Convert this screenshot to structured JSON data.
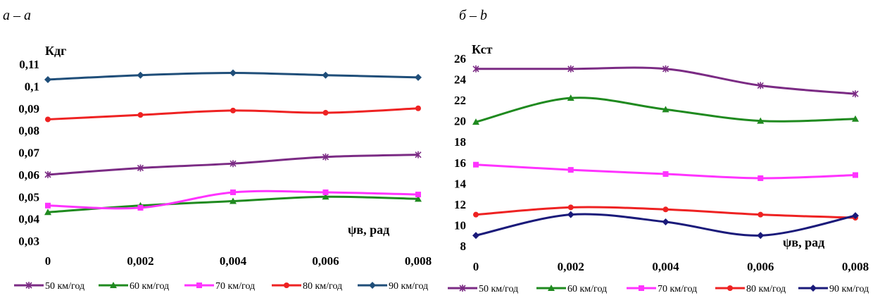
{
  "chart_data": [
    {
      "type": "line",
      "panel_label": "а – а",
      "ylabel": "Кдг",
      "xlabel": "ψв, рад",
      "x": [
        0,
        0.002,
        0.004,
        0.006,
        0.008
      ],
      "x_tick_labels": [
        "0",
        "0,002",
        "0,004",
        "0,006",
        "0,008"
      ],
      "ylim": [
        0.03,
        0.11
      ],
      "y_ticks": [
        0.03,
        0.04,
        0.05,
        0.06,
        0.07,
        0.08,
        0.09,
        0.1,
        0.11
      ],
      "y_tick_labels": [
        "0,03",
        "0,04",
        "0,05",
        "0,06",
        "0,07",
        "0,08",
        "0,09",
        "0,1",
        "0,11"
      ],
      "grid": false,
      "legend_position": "bottom",
      "series": [
        {
          "name": "50 км/год",
          "color": "#7b2b84",
          "marker": "star",
          "values": [
            0.06,
            0.063,
            0.065,
            0.068,
            0.069
          ]
        },
        {
          "name": "60 км/год",
          "color": "#1f8a1f",
          "marker": "triangle",
          "values": [
            0.043,
            0.046,
            0.048,
            0.05,
            0.049
          ]
        },
        {
          "name": "70 км/год",
          "color": "#ff33ff",
          "marker": "square",
          "values": [
            0.046,
            0.045,
            0.052,
            0.052,
            0.051
          ]
        },
        {
          "name": "80 км/год",
          "color": "#ee2222",
          "marker": "circle",
          "values": [
            0.085,
            0.087,
            0.089,
            0.088,
            0.09
          ]
        },
        {
          "name": "90 км/год",
          "color": "#1f4e79",
          "marker": "diamond",
          "values": [
            0.103,
            0.105,
            0.106,
            0.105,
            0.104
          ]
        }
      ]
    },
    {
      "type": "line",
      "panel_label": "б – b",
      "ylabel": "Кст",
      "xlabel": "ψв, рад",
      "x": [
        0,
        0.002,
        0.004,
        0.006,
        0.008
      ],
      "x_tick_labels": [
        "0",
        "0,002",
        "0,004",
        "0,006",
        "0,008"
      ],
      "ylim": [
        8,
        26
      ],
      "y_ticks": [
        8,
        10,
        12,
        14,
        16,
        18,
        20,
        22,
        24,
        26
      ],
      "y_tick_labels": [
        "8",
        "10",
        "12",
        "14",
        "16",
        "18",
        "20",
        "22",
        "24",
        "26"
      ],
      "grid": false,
      "legend_position": "bottom",
      "series": [
        {
          "name": "50 км/год",
          "color": "#7b2b84",
          "marker": "star",
          "values": [
            25.0,
            25.0,
            25.0,
            23.4,
            22.6
          ]
        },
        {
          "name": "60 км/год",
          "color": "#1f8a1f",
          "marker": "triangle",
          "values": [
            19.9,
            22.2,
            21.1,
            20.0,
            20.2
          ]
        },
        {
          "name": "70 км/год",
          "color": "#ff33ff",
          "marker": "square",
          "values": [
            15.8,
            15.3,
            14.9,
            14.5,
            14.8
          ]
        },
        {
          "name": "80 км/год",
          "color": "#ee2222",
          "marker": "circle",
          "values": [
            11.0,
            11.7,
            11.5,
            11.0,
            10.7
          ]
        },
        {
          "name": "90 км/год",
          "color": "#1a1a7a",
          "marker": "diamond",
          "values": [
            9.0,
            11.0,
            10.3,
            9.0,
            10.9
          ]
        }
      ]
    }
  ]
}
